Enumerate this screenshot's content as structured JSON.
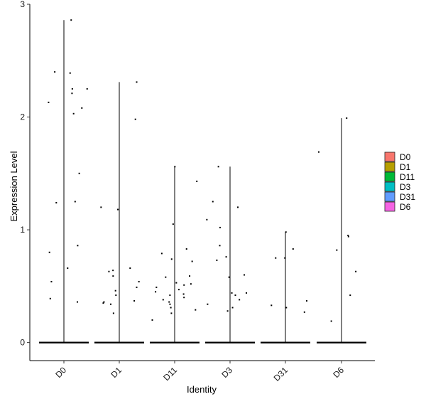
{
  "chart_data": {
    "type": "violin",
    "xlabel": "Identity",
    "ylabel": "Expression Level",
    "ylim": [
      -0.16,
      3.0
    ],
    "yticks": [
      0,
      1,
      2,
      3
    ],
    "categories": [
      "D0",
      "D1",
      "D11",
      "D3",
      "D31",
      "D6"
    ],
    "legend_position": "right",
    "series": [
      {
        "name": "D0",
        "color": "#F8766D",
        "max": 2.86,
        "points": [
          2.86,
          2.4,
          2.39,
          2.25,
          2.25,
          2.21,
          2.13,
          2.08,
          2.03,
          1.5,
          1.25,
          1.24,
          0.86,
          0.8,
          0.66,
          0.54,
          0.39,
          0.36
        ]
      },
      {
        "name": "D1",
        "color": "#B79F00",
        "max": 2.31,
        "points": [
          2.31,
          1.98,
          1.2,
          1.18,
          0.66,
          0.64,
          0.63,
          0.59,
          0.54,
          0.49,
          0.46,
          0.42,
          0.37,
          0.36,
          0.35,
          0.34,
          0.26
        ]
      },
      {
        "name": "D11",
        "color": "#00BA38",
        "max": 1.56,
        "points": [
          1.56,
          1.43,
          1.05,
          0.83,
          0.79,
          0.74,
          0.72,
          0.59,
          0.58,
          0.53,
          0.52,
          0.51,
          0.49,
          0.47,
          0.45,
          0.43,
          0.42,
          0.4,
          0.38,
          0.36,
          0.34,
          0.31,
          0.29,
          0.26,
          0.2
        ]
      },
      {
        "name": "D3",
        "color": "#00BFC4",
        "max": 1.56,
        "points": [
          1.56,
          1.25,
          1.2,
          1.09,
          1.02,
          0.86,
          0.76,
          0.73,
          0.6,
          0.58,
          0.44,
          0.44,
          0.42,
          0.38,
          0.34,
          0.31,
          0.28
        ]
      },
      {
        "name": "D31",
        "color": "#619CFF",
        "max": 0.98,
        "points": [
          0.98,
          0.83,
          0.75,
          0.75,
          0.37,
          0.33,
          0.31,
          0.27
        ]
      },
      {
        "name": "D6",
        "color": "#F564E3",
        "max": 1.99,
        "points": [
          1.99,
          1.69,
          0.95,
          0.94,
          0.82,
          0.63,
          0.42,
          0.19
        ]
      }
    ]
  }
}
